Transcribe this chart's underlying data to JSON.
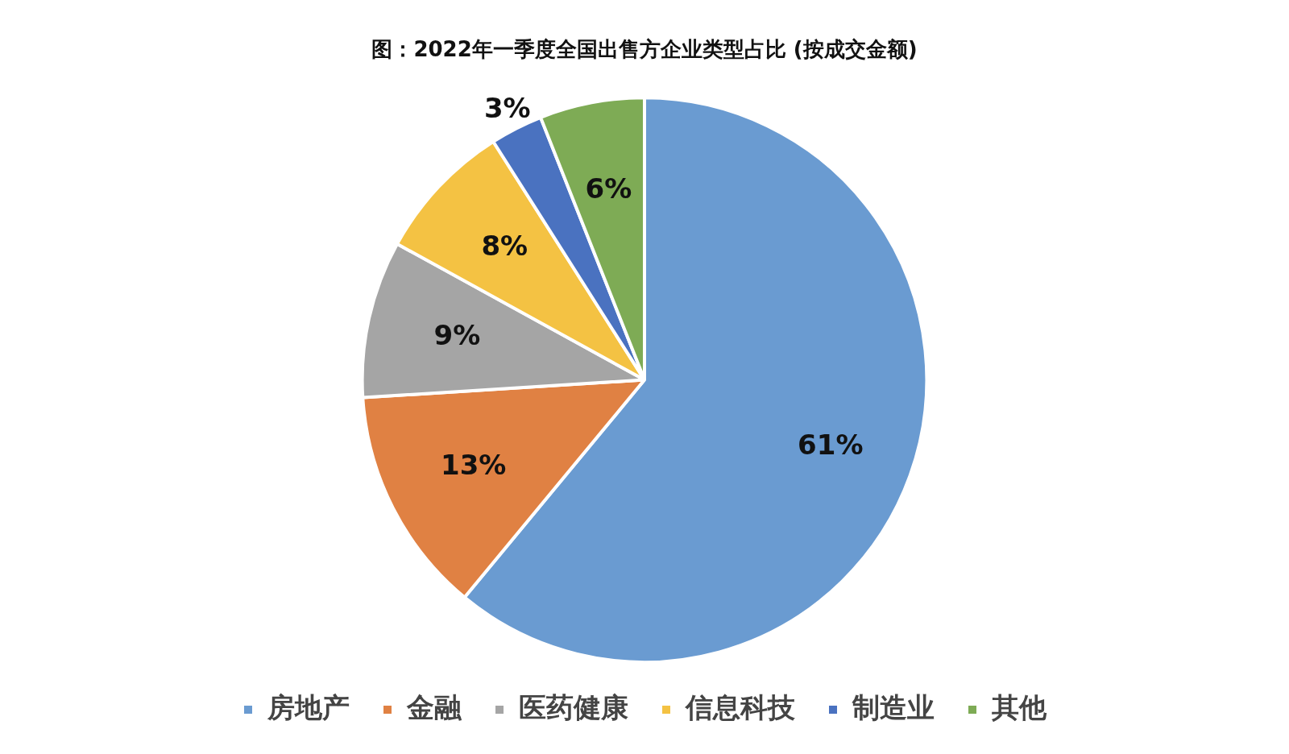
{
  "chart_data": {
    "type": "pie",
    "title": "图：2022年一季度全国出售方企业类型占比 (按成交金额)",
    "categories": [
      "房地产",
      "金融",
      "医药健康",
      "信息科技",
      "制造业",
      "其他"
    ],
    "values": [
      61,
      13,
      9,
      8,
      3,
      6
    ],
    "colors": [
      "#6a9bd1",
      "#e08143",
      "#a5a5a5",
      "#f4c243",
      "#4a72c0",
      "#7eab55"
    ],
    "value_labels": [
      "61%",
      "13%",
      "9%",
      "8%",
      "3%",
      "6%"
    ],
    "legend": "bottom"
  }
}
